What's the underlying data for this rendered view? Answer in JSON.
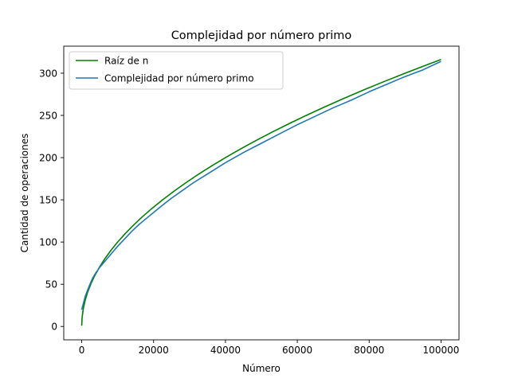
{
  "chart_data": {
    "type": "line",
    "title": "Complejidad por número primo",
    "xlabel": "Número",
    "ylabel": "Cantidad de operaciones",
    "xlim": [
      -5000,
      105000
    ],
    "ylim": [
      -15.8,
      332.0
    ],
    "xticks": [
      0,
      20000,
      40000,
      60000,
      80000,
      100000
    ],
    "yticks": [
      0,
      50,
      100,
      150,
      200,
      250,
      300
    ],
    "grid": false,
    "legend_position": "top-left",
    "series": [
      {
        "name": "Raíz de n",
        "color": "#008000",
        "x": [
          1,
          100,
          400,
          900,
          1600,
          2500,
          3600,
          4900,
          6400,
          8100,
          10000,
          12100,
          14400,
          16900,
          19600,
          22500,
          25600,
          28900,
          32400,
          36100,
          40000,
          44100,
          48400,
          52900,
          57600,
          62500,
          67600,
          72900,
          78400,
          84100,
          90000,
          96100,
          100000
        ],
        "y": [
          1,
          10,
          20,
          30,
          40,
          50,
          60,
          70,
          80,
          90,
          100,
          110,
          120,
          130,
          140,
          150,
          160,
          170,
          180,
          190,
          200,
          210,
          220,
          230,
          240,
          250,
          260,
          270,
          280,
          290,
          300,
          310,
          316.2
        ]
      },
      {
        "name": "Complejidad por número primo",
        "color": "#1f77b4",
        "x": [
          1,
          1000,
          2000,
          3000,
          4000,
          5000,
          6000,
          7000,
          8000,
          9000,
          10000,
          12000,
          14000,
          16000,
          18000,
          20000,
          22000,
          25000,
          28000,
          31000,
          34000,
          37000,
          40000,
          45000,
          50000,
          55000,
          60000,
          65000,
          70000,
          75000,
          80000,
          85000,
          90000,
          95000,
          100000
        ],
        "y": [
          20,
          36,
          47,
          57,
          64,
          70,
          75,
          80,
          85,
          90,
          95,
          104,
          113,
          121,
          128,
          135,
          142,
          152,
          161,
          170,
          178,
          186,
          194,
          206,
          217,
          228,
          239,
          249,
          259,
          268,
          278,
          287,
          296,
          304,
          314
        ]
      }
    ]
  }
}
